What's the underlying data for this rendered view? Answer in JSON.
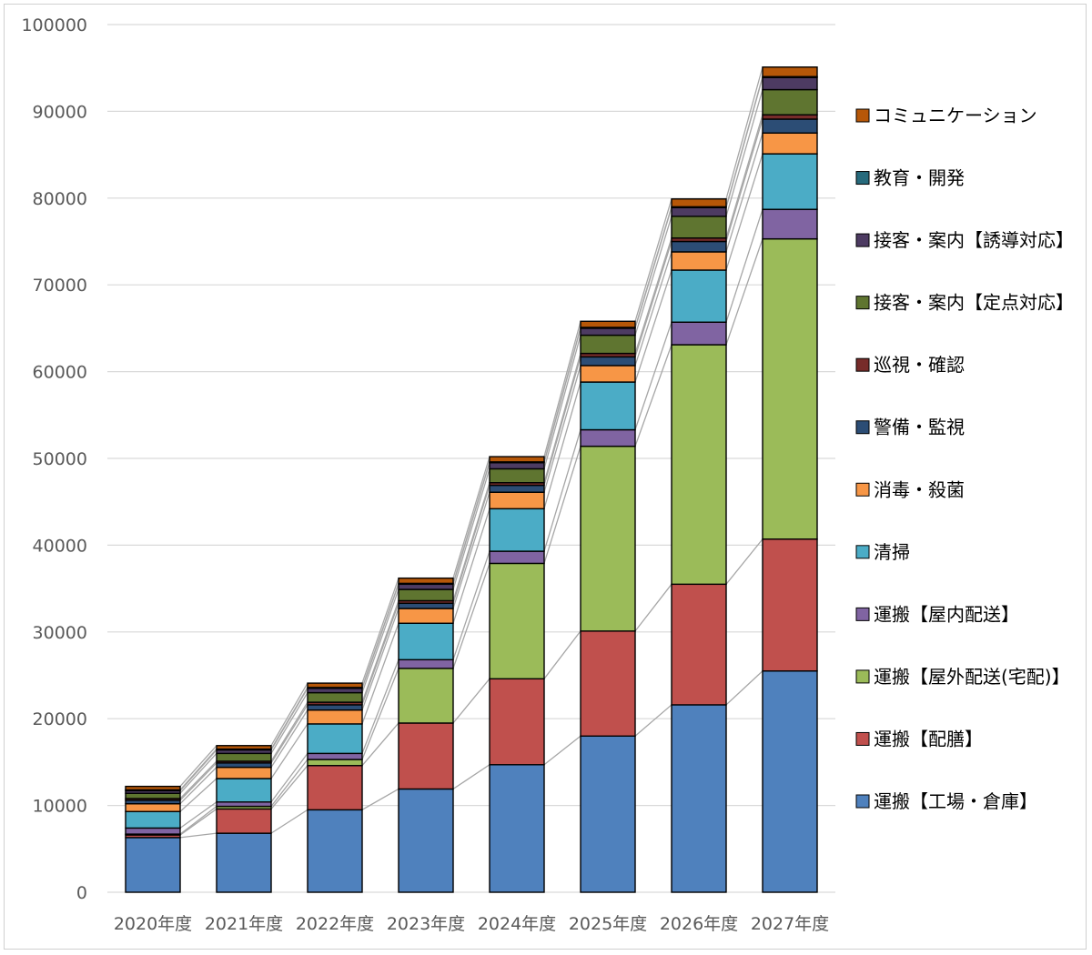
{
  "chart_data": {
    "type": "bar",
    "stacked": true,
    "title": "",
    "xlabel": "",
    "ylabel": "",
    "ylim": [
      0,
      100000
    ],
    "yticks": [
      0,
      10000,
      20000,
      30000,
      40000,
      50000,
      60000,
      70000,
      80000,
      90000,
      100000
    ],
    "grid": true,
    "legend_position": "right",
    "series_connector_lines": true,
    "categories": [
      "2020年度",
      "2021年度",
      "2022年度",
      "2023年度",
      "2024年度",
      "2025年度",
      "2026年度",
      "2027年度"
    ],
    "series": [
      {
        "name": "運搬【工場・倉庫】",
        "color": "#4f81bd",
        "values": [
          6300,
          6800,
          9500,
          11900,
          14700,
          18000,
          21600,
          25500
        ]
      },
      {
        "name": "運搬【配膳】",
        "color": "#c0504d",
        "values": [
          300,
          2800,
          5100,
          7600,
          9900,
          12100,
          13900,
          15200
        ]
      },
      {
        "name": "運搬【屋外配送(宅配)】",
        "color": "#9bbb59",
        "values": [
          100,
          300,
          700,
          6300,
          13300,
          21300,
          27600,
          34600
        ]
      },
      {
        "name": "運搬【屋内配送】",
        "color": "#8064a2",
        "values": [
          700,
          500,
          700,
          1000,
          1400,
          1900,
          2600,
          3400
        ]
      },
      {
        "name": "清掃",
        "color": "#4bacc6",
        "values": [
          1900,
          2700,
          3400,
          4200,
          4900,
          5500,
          6000,
          6400
        ]
      },
      {
        "name": "消毒・殺菌",
        "color": "#f79646",
        "values": [
          900,
          1300,
          1600,
          1700,
          1900,
          1900,
          2100,
          2400
        ]
      },
      {
        "name": "警備・監視",
        "color": "#2c4d75",
        "values": [
          400,
          500,
          600,
          600,
          800,
          1000,
          1200,
          1600
        ]
      },
      {
        "name": "巡視・確認",
        "color": "#772c2a",
        "values": [
          200,
          200,
          300,
          300,
          300,
          400,
          400,
          500
        ]
      },
      {
        "name": "接客・案内【定点対応】",
        "color": "#5f7530",
        "values": [
          600,
          900,
          1100,
          1300,
          1600,
          2100,
          2500,
          2900
        ]
      },
      {
        "name": "接客・案内【誘導対応】",
        "color": "#4d3b62",
        "values": [
          300,
          400,
          500,
          600,
          700,
          800,
          1000,
          1400
        ]
      },
      {
        "name": "教育・開発",
        "color": "#276a7c",
        "values": [
          100,
          100,
          100,
          100,
          100,
          100,
          100,
          100
        ]
      },
      {
        "name": "コミュニケーション",
        "color": "#b65708",
        "values": [
          400,
          400,
          500,
          600,
          600,
          700,
          900,
          1100
        ]
      }
    ]
  }
}
